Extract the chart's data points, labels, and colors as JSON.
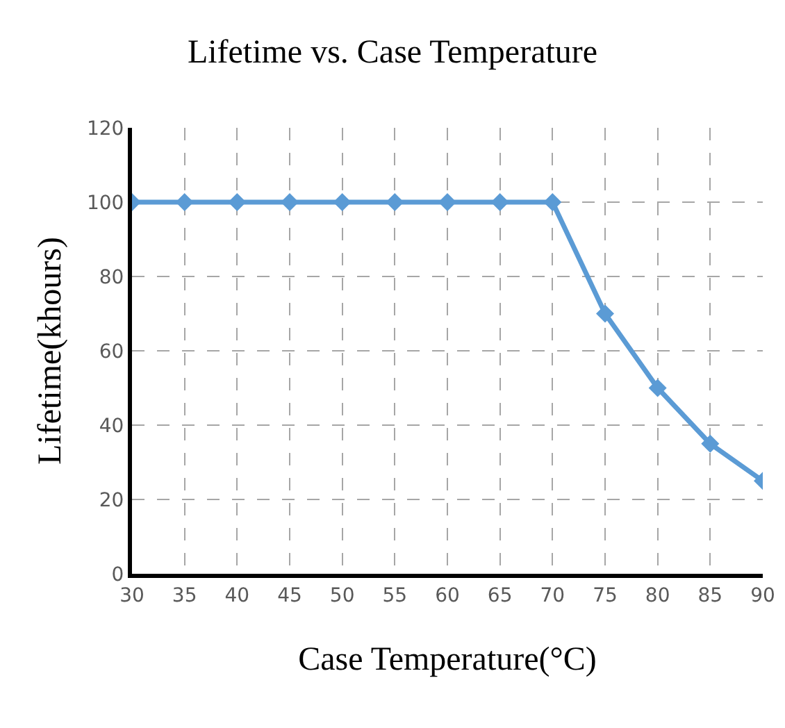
{
  "chart_data": {
    "type": "line",
    "title": "Lifetime vs. Case Temperature",
    "xlabel": "Case Temperature(°C)",
    "ylabel": "Lifetime(khours)",
    "x": [
      30,
      35,
      40,
      45,
      50,
      55,
      60,
      65,
      70,
      75,
      80,
      85,
      90
    ],
    "series": [
      {
        "color": "#5b9bd5",
        "values": [
          100,
          100,
          100,
          100,
          100,
          100,
          100,
          100,
          100,
          70,
          50,
          35,
          25
        ]
      }
    ],
    "xlim": [
      30,
      90
    ],
    "xticks": [
      30,
      35,
      40,
      45,
      50,
      55,
      60,
      65,
      70,
      75,
      80,
      85,
      90
    ],
    "ylim": [
      0,
      120
    ],
    "yticks": [
      0,
      20,
      40,
      60,
      80,
      100,
      120
    ],
    "grid": true,
    "marker": "diamond",
    "line_style": "solid"
  }
}
